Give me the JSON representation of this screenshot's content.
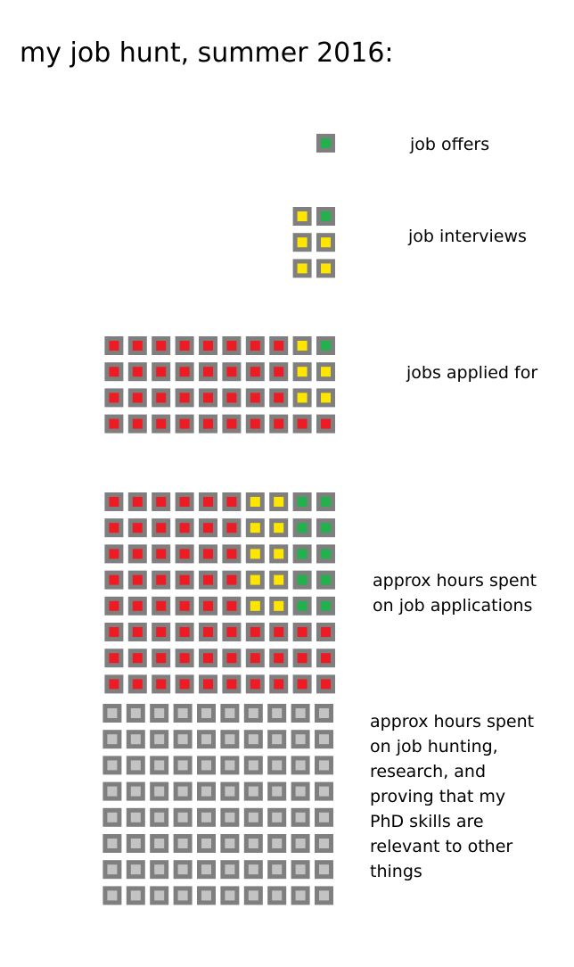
{
  "title": "my job hunt, summer 2016:",
  "colors": {
    "border": "#7f7f7f",
    "red": "#ed1c24",
    "yellow": "#ffe600",
    "green": "#22b14c",
    "gray": "#c3c3c3"
  },
  "chart_data": {
    "type": "unit-grid",
    "title": "my job hunt, summer 2016:",
    "grids": [
      {
        "label": "job offers",
        "rows": [
          [
            "green"
          ]
        ]
      },
      {
        "label": "job interviews",
        "rows": [
          [
            "yellow",
            "green"
          ],
          [
            "yellow",
            "yellow"
          ],
          [
            "yellow",
            "yellow"
          ]
        ]
      },
      {
        "label": "jobs applied for",
        "rows": [
          [
            "red",
            "red",
            "red",
            "red",
            "red",
            "red",
            "red",
            "red",
            "yellow",
            "green"
          ],
          [
            "red",
            "red",
            "red",
            "red",
            "red",
            "red",
            "red",
            "red",
            "yellow",
            "yellow"
          ],
          [
            "red",
            "red",
            "red",
            "red",
            "red",
            "red",
            "red",
            "red",
            "yellow",
            "yellow"
          ],
          [
            "red",
            "red",
            "red",
            "red",
            "red",
            "red",
            "red",
            "red",
            "red",
            "red"
          ]
        ]
      },
      {
        "label": "approx hours spent\non job applications",
        "rows": [
          [
            "red",
            "red",
            "red",
            "red",
            "red",
            "red",
            "yellow",
            "yellow",
            "green",
            "green"
          ],
          [
            "red",
            "red",
            "red",
            "red",
            "red",
            "red",
            "yellow",
            "yellow",
            "green",
            "green"
          ],
          [
            "red",
            "red",
            "red",
            "red",
            "red",
            "red",
            "yellow",
            "yellow",
            "green",
            "green"
          ],
          [
            "red",
            "red",
            "red",
            "red",
            "red",
            "red",
            "yellow",
            "yellow",
            "green",
            "green"
          ],
          [
            "red",
            "red",
            "red",
            "red",
            "red",
            "red",
            "yellow",
            "yellow",
            "green",
            "green"
          ],
          [
            "red",
            "red",
            "red",
            "red",
            "red",
            "red",
            "red",
            "red",
            "red",
            "red"
          ],
          [
            "red",
            "red",
            "red",
            "red",
            "red",
            "red",
            "red",
            "red",
            "red",
            "red"
          ],
          [
            "red",
            "red",
            "red",
            "red",
            "red",
            "red",
            "red",
            "red",
            "red",
            "red"
          ]
        ]
      },
      {
        "label": "approx hours spent\non job hunting,\nresearch, and\nproving that my\nPhD skills are\nrelevant to other\nthings",
        "rows": [
          [
            "gray",
            "gray",
            "gray",
            "gray",
            "gray",
            "gray",
            "gray",
            "gray",
            "gray",
            "gray"
          ],
          [
            "gray",
            "gray",
            "gray",
            "gray",
            "gray",
            "gray",
            "gray",
            "gray",
            "gray",
            "gray"
          ],
          [
            "gray",
            "gray",
            "gray",
            "gray",
            "gray",
            "gray",
            "gray",
            "gray",
            "gray",
            "gray"
          ],
          [
            "gray",
            "gray",
            "gray",
            "gray",
            "gray",
            "gray",
            "gray",
            "gray",
            "gray",
            "gray"
          ],
          [
            "gray",
            "gray",
            "gray",
            "gray",
            "gray",
            "gray",
            "gray",
            "gray",
            "gray",
            "gray"
          ],
          [
            "gray",
            "gray",
            "gray",
            "gray",
            "gray",
            "gray",
            "gray",
            "gray",
            "gray",
            "gray"
          ],
          [
            "gray",
            "gray",
            "gray",
            "gray",
            "gray",
            "gray",
            "gray",
            "gray",
            "gray",
            "gray"
          ],
          [
            "gray",
            "gray",
            "gray",
            "gray",
            "gray",
            "gray",
            "gray",
            "gray",
            "gray",
            "gray"
          ]
        ]
      }
    ]
  }
}
